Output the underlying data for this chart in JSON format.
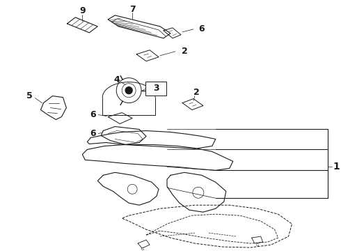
{
  "background_color": "#ffffff",
  "figure_width": 4.9,
  "figure_height": 3.6,
  "dpi": 100,
  "line_color": "#1a1a1a",
  "lw": 0.7,
  "parts": {
    "label_fontsize": 8,
    "label_fontweight": "bold"
  }
}
